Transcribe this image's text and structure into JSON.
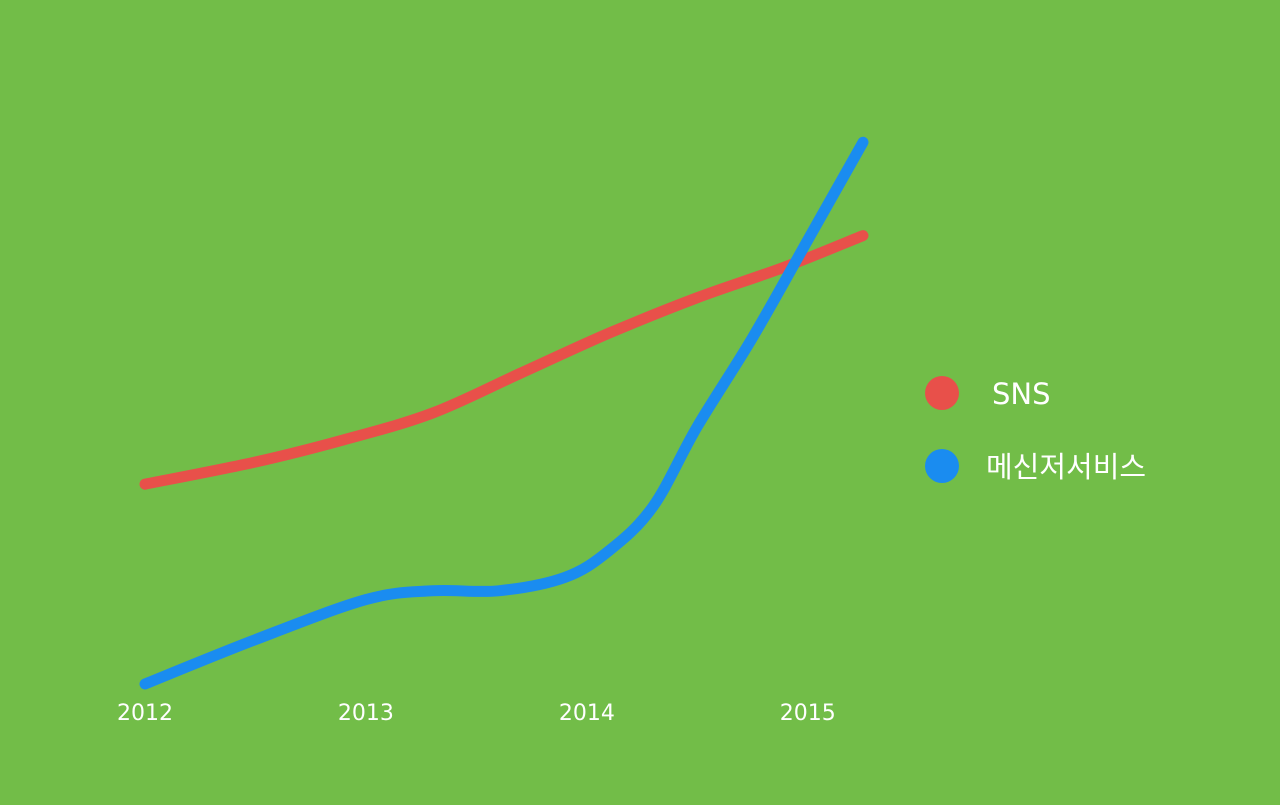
{
  "chart_data": {
    "type": "line",
    "title": "",
    "xlabel": "",
    "ylabel": "",
    "x": [
      2012,
      2013,
      2014,
      2015
    ],
    "x_tick_labels": [
      "2012",
      "2013",
      "2014",
      "2015"
    ],
    "xlim": [
      2012,
      2015.25
    ],
    "ylim": [
      0,
      100
    ],
    "grid": false,
    "legend_position": "right",
    "background_color": "#72bd48",
    "series": [
      {
        "name": "SNS",
        "color": "#e8504a",
        "points": [
          [
            2012.0,
            45
          ],
          [
            2012.5,
            50
          ],
          [
            2012.9,
            55
          ],
          [
            2013.3,
            61
          ],
          [
            2013.7,
            70
          ],
          [
            2014.1,
            79
          ],
          [
            2014.5,
            87
          ],
          [
            2014.9,
            94
          ],
          [
            2015.25,
            101
          ]
        ]
      },
      {
        "name": "메신저서비스",
        "color": "#1a8cf0",
        "points": [
          [
            2012.0,
            0
          ],
          [
            2012.5,
            10
          ],
          [
            2013.0,
            19
          ],
          [
            2013.3,
            21
          ],
          [
            2013.6,
            21
          ],
          [
            2013.9,
            24
          ],
          [
            2014.1,
            30
          ],
          [
            2014.3,
            40
          ],
          [
            2014.5,
            58
          ],
          [
            2014.75,
            78
          ],
          [
            2015.0,
            100
          ],
          [
            2015.25,
            122
          ]
        ]
      }
    ]
  }
}
